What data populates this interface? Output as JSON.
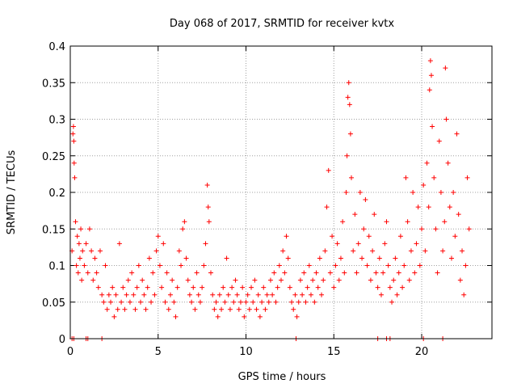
{
  "chart_data": {
    "type": "scatter",
    "title": "Day 068 of 2017, SRMTID for receiver kvtx",
    "xlabel": "GPS time / hours",
    "ylabel": "SRMTID / TECUs",
    "xlim": [
      0,
      24
    ],
    "ylim": [
      0,
      0.4
    ],
    "xticks": [
      0,
      5,
      10,
      15,
      20
    ],
    "xtick_labels": [
      "0",
      "5",
      "10",
      "15",
      "20"
    ],
    "yticks": [
      0,
      0.05,
      0.1,
      0.15,
      0.2,
      0.25,
      0.3,
      0.35,
      0.4
    ],
    "ytick_labels": [
      "0",
      "0.05",
      "0.1",
      "0.15",
      "0.2",
      "0.25",
      "0.3",
      "0.35",
      "0.4"
    ],
    "grid": true,
    "marker": "plus",
    "color": "#ff0000",
    "series": [
      {
        "name": "SRMTID",
        "points": [
          [
            0.1,
            0.12
          ],
          [
            0.15,
            0.28
          ],
          [
            0.18,
            0.29
          ],
          [
            0.2,
            0.27
          ],
          [
            0.22,
            0.24
          ],
          [
            0.25,
            0.22
          ],
          [
            0.3,
            0.16
          ],
          [
            0.35,
            0.1
          ],
          [
            0.4,
            0.14
          ],
          [
            0.45,
            0.09
          ],
          [
            0.5,
            0.13
          ],
          [
            0.55,
            0.11
          ],
          [
            0.6,
            0.15
          ],
          [
            0.65,
            0.08
          ],
          [
            0.7,
            0.12
          ],
          [
            0.8,
            0.1
          ],
          [
            0.9,
            0.13
          ],
          [
            1.0,
            0.09
          ],
          [
            1.1,
            0.15
          ],
          [
            1.2,
            0.12
          ],
          [
            1.3,
            0.08
          ],
          [
            1.4,
            0.11
          ],
          [
            1.5,
            0.09
          ],
          [
            1.6,
            0.07
          ],
          [
            1.7,
            0.12
          ],
          [
            1.8,
            0.06
          ],
          [
            1.9,
            0.05
          ],
          [
            2.0,
            0.1
          ],
          [
            2.1,
            0.04
          ],
          [
            2.2,
            0.06
          ],
          [
            2.3,
            0.05
          ],
          [
            2.4,
            0.07
          ],
          [
            2.5,
            0.03
          ],
          [
            2.6,
            0.06
          ],
          [
            2.7,
            0.04
          ],
          [
            2.8,
            0.13
          ],
          [
            2.9,
            0.05
          ],
          [
            3.0,
            0.07
          ],
          [
            3.1,
            0.04
          ],
          [
            3.2,
            0.06
          ],
          [
            3.3,
            0.08
          ],
          [
            3.4,
            0.05
          ],
          [
            3.5,
            0.09
          ],
          [
            3.6,
            0.06
          ],
          [
            3.7,
            0.04
          ],
          [
            3.8,
            0.07
          ],
          [
            3.9,
            0.1
          ],
          [
            4.0,
            0.05
          ],
          [
            4.1,
            0.08
          ],
          [
            4.2,
            0.06
          ],
          [
            4.3,
            0.04
          ],
          [
            4.4,
            0.07
          ],
          [
            4.5,
            0.11
          ],
          [
            4.6,
            0.05
          ],
          [
            4.7,
            0.09
          ],
          [
            4.8,
            0.06
          ],
          [
            4.9,
            0.12
          ],
          [
            5.0,
            0.14
          ],
          [
            5.1,
            0.1
          ],
          [
            5.2,
            0.07
          ],
          [
            5.3,
            0.13
          ],
          [
            5.4,
            0.05
          ],
          [
            5.5,
            0.09
          ],
          [
            5.6,
            0.04
          ],
          [
            5.7,
            0.06
          ],
          [
            5.8,
            0.08
          ],
          [
            5.9,
            0.05
          ],
          [
            6.0,
            0.03
          ],
          [
            6.1,
            0.07
          ],
          [
            6.2,
            0.12
          ],
          [
            6.3,
            0.1
          ],
          [
            6.4,
            0.15
          ],
          [
            6.5,
            0.16
          ],
          [
            6.6,
            0.11
          ],
          [
            6.7,
            0.08
          ],
          [
            6.8,
            0.06
          ],
          [
            6.9,
            0.05
          ],
          [
            7.0,
            0.07
          ],
          [
            7.1,
            0.04
          ],
          [
            7.2,
            0.09
          ],
          [
            7.3,
            0.06
          ],
          [
            7.4,
            0.05
          ],
          [
            7.5,
            0.07
          ],
          [
            7.6,
            0.1
          ],
          [
            7.7,
            0.13
          ],
          [
            7.8,
            0.21
          ],
          [
            7.85,
            0.18
          ],
          [
            7.9,
            0.16
          ],
          [
            8.0,
            0.09
          ],
          [
            8.1,
            0.06
          ],
          [
            8.2,
            0.04
          ],
          [
            8.3,
            0.05
          ],
          [
            8.4,
            0.03
          ],
          [
            8.5,
            0.06
          ],
          [
            8.6,
            0.04
          ],
          [
            8.7,
            0.07
          ],
          [
            8.8,
            0.05
          ],
          [
            8.9,
            0.11
          ],
          [
            9.0,
            0.06
          ],
          [
            9.1,
            0.04
          ],
          [
            9.2,
            0.07
          ],
          [
            9.3,
            0.05
          ],
          [
            9.4,
            0.08
          ],
          [
            9.5,
            0.06
          ],
          [
            9.6,
            0.04
          ],
          [
            9.7,
            0.05
          ],
          [
            9.8,
            0.07
          ],
          [
            9.9,
            0.03
          ],
          [
            10.0,
            0.05
          ],
          [
            10.1,
            0.06
          ],
          [
            10.2,
            0.04
          ],
          [
            10.3,
            0.07
          ],
          [
            10.4,
            0.05
          ],
          [
            10.5,
            0.08
          ],
          [
            10.6,
            0.04
          ],
          [
            10.7,
            0.06
          ],
          [
            10.8,
            0.03
          ],
          [
            10.9,
            0.05
          ],
          [
            11.0,
            0.07
          ],
          [
            11.1,
            0.04
          ],
          [
            11.2,
            0.06
          ],
          [
            11.3,
            0.05
          ],
          [
            11.4,
            0.08
          ],
          [
            11.5,
            0.06
          ],
          [
            11.6,
            0.09
          ],
          [
            11.7,
            0.05
          ],
          [
            11.8,
            0.07
          ],
          [
            11.9,
            0.1
          ],
          [
            12.0,
            0.08
          ],
          [
            12.1,
            0.12
          ],
          [
            12.2,
            0.09
          ],
          [
            12.3,
            0.14
          ],
          [
            12.4,
            0.11
          ],
          [
            12.5,
            0.07
          ],
          [
            12.6,
            0.05
          ],
          [
            12.7,
            0.04
          ],
          [
            12.8,
            0.06
          ],
          [
            12.9,
            0.03
          ],
          [
            13.0,
            0.05
          ],
          [
            13.1,
            0.08
          ],
          [
            13.2,
            0.06
          ],
          [
            13.3,
            0.09
          ],
          [
            13.4,
            0.05
          ],
          [
            13.5,
            0.07
          ],
          [
            13.6,
            0.1
          ],
          [
            13.7,
            0.06
          ],
          [
            13.8,
            0.08
          ],
          [
            13.9,
            0.05
          ],
          [
            14.0,
            0.09
          ],
          [
            14.1,
            0.07
          ],
          [
            14.2,
            0.11
          ],
          [
            14.3,
            0.06
          ],
          [
            14.4,
            0.08
          ],
          [
            14.5,
            0.12
          ],
          [
            14.6,
            0.18
          ],
          [
            14.7,
            0.23
          ],
          [
            14.8,
            0.09
          ],
          [
            14.9,
            0.14
          ],
          [
            15.0,
            0.07
          ],
          [
            15.1,
            0.1
          ],
          [
            15.2,
            0.13
          ],
          [
            15.3,
            0.08
          ],
          [
            15.4,
            0.11
          ],
          [
            15.5,
            0.16
          ],
          [
            15.6,
            0.09
          ],
          [
            15.7,
            0.2
          ],
          [
            15.75,
            0.25
          ],
          [
            15.8,
            0.33
          ],
          [
            15.85,
            0.35
          ],
          [
            15.9,
            0.32
          ],
          [
            15.95,
            0.28
          ],
          [
            16.0,
            0.22
          ],
          [
            16.1,
            0.12
          ],
          [
            16.2,
            0.17
          ],
          [
            16.3,
            0.09
          ],
          [
            16.4,
            0.13
          ],
          [
            16.5,
            0.2
          ],
          [
            16.6,
            0.11
          ],
          [
            16.7,
            0.15
          ],
          [
            16.8,
            0.19
          ],
          [
            16.9,
            0.1
          ],
          [
            17.0,
            0.14
          ],
          [
            17.1,
            0.08
          ],
          [
            17.2,
            0.12
          ],
          [
            17.3,
            0.17
          ],
          [
            17.4,
            0.09
          ],
          [
            17.5,
            0.07
          ],
          [
            17.6,
            0.11
          ],
          [
            17.7,
            0.06
          ],
          [
            17.8,
            0.09
          ],
          [
            17.9,
            0.13
          ],
          [
            18.0,
            0.16
          ],
          [
            18.1,
            0.1
          ],
          [
            18.2,
            0.07
          ],
          [
            18.3,
            0.05
          ],
          [
            18.4,
            0.08
          ],
          [
            18.5,
            0.11
          ],
          [
            18.6,
            0.06
          ],
          [
            18.7,
            0.09
          ],
          [
            18.8,
            0.14
          ],
          [
            18.9,
            0.07
          ],
          [
            19.0,
            0.1
          ],
          [
            19.1,
            0.22
          ],
          [
            19.2,
            0.16
          ],
          [
            19.3,
            0.08
          ],
          [
            19.4,
            0.12
          ],
          [
            19.5,
            0.2
          ],
          [
            19.6,
            0.09
          ],
          [
            19.7,
            0.13
          ],
          [
            19.8,
            0.18
          ],
          [
            19.9,
            0.1
          ],
          [
            20.0,
            0.15
          ],
          [
            20.1,
            0.21
          ],
          [
            20.2,
            0.12
          ],
          [
            20.3,
            0.24
          ],
          [
            20.4,
            0.18
          ],
          [
            20.45,
            0.34
          ],
          [
            20.5,
            0.38
          ],
          [
            20.55,
            0.36
          ],
          [
            20.6,
            0.29
          ],
          [
            20.7,
            0.22
          ],
          [
            20.8,
            0.15
          ],
          [
            20.9,
            0.09
          ],
          [
            21.0,
            0.27
          ],
          [
            21.1,
            0.2
          ],
          [
            21.2,
            0.12
          ],
          [
            21.3,
            0.16
          ],
          [
            21.35,
            0.37
          ],
          [
            21.4,
            0.3
          ],
          [
            21.5,
            0.24
          ],
          [
            21.6,
            0.18
          ],
          [
            21.7,
            0.11
          ],
          [
            21.8,
            0.2
          ],
          [
            21.9,
            0.14
          ],
          [
            22.0,
            0.28
          ],
          [
            22.1,
            0.17
          ],
          [
            22.2,
            0.08
          ],
          [
            22.3,
            0.12
          ],
          [
            22.4,
            0.06
          ],
          [
            22.5,
            0.1
          ],
          [
            22.6,
            0.22
          ],
          [
            22.7,
            0.15
          ]
        ]
      }
    ],
    "zero_points_x": [
      0.1,
      0.2,
      0.9,
      1.0,
      1.8,
      12.85,
      17.5,
      18.0,
      18.2,
      20.1,
      21.2
    ]
  }
}
